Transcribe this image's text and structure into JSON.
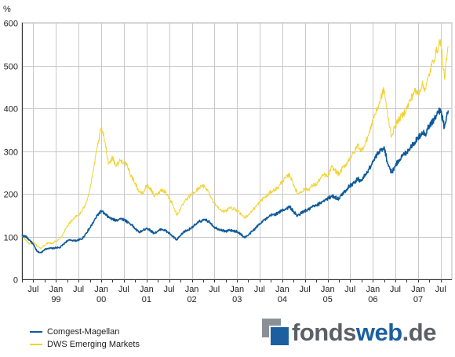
{
  "chart_data": {
    "type": "line",
    "ylabel": "%",
    "ylim": [
      0,
      600
    ],
    "yticks": [
      "0",
      "100",
      "200",
      "300",
      "400",
      "500",
      "600"
    ],
    "xlim": [
      "1998-04-01",
      "2007-09-30"
    ],
    "x_month_ticks": [
      "Jul",
      "Jan",
      "Jul",
      "Jan",
      "Jul",
      "Jan",
      "Jul",
      "Jan",
      "Jul",
      "Jan",
      "Jul",
      "Jan",
      "Jul",
      "Jan",
      "Jul",
      "Jan",
      "Jul",
      "Jan",
      "Jul"
    ],
    "x_year_ticks": [
      "99",
      "00",
      "01",
      "02",
      "03",
      "04",
      "05",
      "06",
      "07"
    ],
    "grid": true,
    "legend_position": "bottom-left",
    "series": [
      {
        "name": "Comgest-Magellan",
        "color": "#0d5a9a",
        "points": [
          [
            "1998-04-01",
            102
          ],
          [
            "1998-05-01",
            100
          ],
          [
            "1998-06-01",
            92
          ],
          [
            "1998-07-01",
            82
          ],
          [
            "1998-08-01",
            65
          ],
          [
            "1998-09-01",
            62
          ],
          [
            "1998-10-01",
            70
          ],
          [
            "1998-11-01",
            73
          ],
          [
            "1998-12-01",
            72
          ],
          [
            "1999-01-01",
            74
          ],
          [
            "1999-02-01",
            74
          ],
          [
            "1999-03-01",
            82
          ],
          [
            "1999-04-01",
            90
          ],
          [
            "1999-05-01",
            92
          ],
          [
            "1999-06-01",
            90
          ],
          [
            "1999-07-01",
            92
          ],
          [
            "1999-08-01",
            95
          ],
          [
            "1999-09-01",
            108
          ],
          [
            "1999-10-01",
            120
          ],
          [
            "1999-11-01",
            135
          ],
          [
            "1999-12-01",
            150
          ],
          [
            "2000-01-01",
            160
          ],
          [
            "2000-02-01",
            152
          ],
          [
            "2000-03-01",
            145
          ],
          [
            "2000-04-01",
            140
          ],
          [
            "2000-05-01",
            138
          ],
          [
            "2000-06-01",
            142
          ],
          [
            "2000-07-01",
            140
          ],
          [
            "2000-08-01",
            134
          ],
          [
            "2000-09-01",
            128
          ],
          [
            "2000-10-01",
            118
          ],
          [
            "2000-11-01",
            110
          ],
          [
            "2000-12-01",
            114
          ],
          [
            "2001-01-01",
            120
          ],
          [
            "2001-02-01",
            114
          ],
          [
            "2001-03-01",
            108
          ],
          [
            "2001-04-01",
            112
          ],
          [
            "2001-05-01",
            118
          ],
          [
            "2001-06-01",
            114
          ],
          [
            "2001-07-01",
            108
          ],
          [
            "2001-08-01",
            100
          ],
          [
            "2001-09-01",
            92
          ],
          [
            "2001-10-01",
            102
          ],
          [
            "2001-11-01",
            112
          ],
          [
            "2001-12-01",
            115
          ],
          [
            "2002-01-01",
            122
          ],
          [
            "2002-02-01",
            128
          ],
          [
            "2002-03-01",
            135
          ],
          [
            "2002-04-01",
            138
          ],
          [
            "2002-05-01",
            138
          ],
          [
            "2002-06-01",
            132
          ],
          [
            "2002-07-01",
            122
          ],
          [
            "2002-08-01",
            118
          ],
          [
            "2002-09-01",
            115
          ],
          [
            "2002-10-01",
            112
          ],
          [
            "2002-11-01",
            115
          ],
          [
            "2002-12-01",
            113
          ],
          [
            "2003-01-01",
            112
          ],
          [
            "2003-02-01",
            105
          ],
          [
            "2003-03-01",
            98
          ],
          [
            "2003-04-01",
            103
          ],
          [
            "2003-05-01",
            112
          ],
          [
            "2003-06-01",
            120
          ],
          [
            "2003-07-01",
            130
          ],
          [
            "2003-08-01",
            138
          ],
          [
            "2003-09-01",
            142
          ],
          [
            "2003-10-01",
            150
          ],
          [
            "2003-11-01",
            152
          ],
          [
            "2003-12-01",
            155
          ],
          [
            "2004-01-01",
            162
          ],
          [
            "2004-02-01",
            165
          ],
          [
            "2004-03-01",
            170
          ],
          [
            "2004-04-01",
            158
          ],
          [
            "2004-05-01",
            148
          ],
          [
            "2004-06-01",
            155
          ],
          [
            "2004-07-01",
            160
          ],
          [
            "2004-08-01",
            163
          ],
          [
            "2004-09-01",
            170
          ],
          [
            "2004-10-01",
            172
          ],
          [
            "2004-11-01",
            178
          ],
          [
            "2004-12-01",
            185
          ],
          [
            "2005-01-01",
            188
          ],
          [
            "2005-02-01",
            195
          ],
          [
            "2005-03-01",
            192
          ],
          [
            "2005-04-01",
            188
          ],
          [
            "2005-05-01",
            200
          ],
          [
            "2005-06-01",
            210
          ],
          [
            "2005-07-01",
            220
          ],
          [
            "2005-08-01",
            225
          ],
          [
            "2005-09-01",
            235
          ],
          [
            "2005-10-01",
            230
          ],
          [
            "2005-11-01",
            245
          ],
          [
            "2005-12-01",
            258
          ],
          [
            "2006-01-01",
            275
          ],
          [
            "2006-02-01",
            290
          ],
          [
            "2006-03-01",
            300
          ],
          [
            "2006-04-01",
            310
          ],
          [
            "2006-05-01",
            270
          ],
          [
            "2006-06-01",
            250
          ],
          [
            "2006-07-01",
            265
          ],
          [
            "2006-08-01",
            280
          ],
          [
            "2006-09-01",
            290
          ],
          [
            "2006-10-01",
            298
          ],
          [
            "2006-11-01",
            310
          ],
          [
            "2006-12-01",
            320
          ],
          [
            "2007-01-01",
            330
          ],
          [
            "2007-02-01",
            345
          ],
          [
            "2007-03-01",
            340
          ],
          [
            "2007-04-01",
            360
          ],
          [
            "2007-05-01",
            370
          ],
          [
            "2007-06-01",
            385
          ],
          [
            "2007-07-01",
            398
          ],
          [
            "2007-08-01",
            355
          ],
          [
            "2007-09-01",
            395
          ]
        ]
      },
      {
        "name": "DWS Emerging Markets",
        "color": "#f2d230",
        "points": [
          [
            "1998-04-01",
            100
          ],
          [
            "1998-05-01",
            92
          ],
          [
            "1998-06-01",
            82
          ],
          [
            "1998-07-01",
            88
          ],
          [
            "1998-08-01",
            78
          ],
          [
            "1998-09-01",
            72
          ],
          [
            "1998-10-01",
            80
          ],
          [
            "1998-11-01",
            86
          ],
          [
            "1998-12-01",
            84
          ],
          [
            "1999-01-01",
            90
          ],
          [
            "1999-02-01",
            94
          ],
          [
            "1999-03-01",
            108
          ],
          [
            "1999-04-01",
            125
          ],
          [
            "1999-05-01",
            135
          ],
          [
            "1999-06-01",
            145
          ],
          [
            "1999-07-01",
            150
          ],
          [
            "1999-08-01",
            160
          ],
          [
            "1999-09-01",
            180
          ],
          [
            "1999-10-01",
            210
          ],
          [
            "1999-11-01",
            260
          ],
          [
            "1999-12-01",
            310
          ],
          [
            "2000-01-01",
            355
          ],
          [
            "2000-02-01",
            320
          ],
          [
            "2000-03-01",
            270
          ],
          [
            "2000-04-01",
            285
          ],
          [
            "2000-05-01",
            265
          ],
          [
            "2000-06-01",
            278
          ],
          [
            "2000-07-01",
            275
          ],
          [
            "2000-08-01",
            262
          ],
          [
            "2000-09-01",
            240
          ],
          [
            "2000-10-01",
            225
          ],
          [
            "2000-11-01",
            205
          ],
          [
            "2000-12-01",
            200
          ],
          [
            "2001-01-01",
            220
          ],
          [
            "2001-02-01",
            212
          ],
          [
            "2001-03-01",
            195
          ],
          [
            "2001-04-01",
            200
          ],
          [
            "2001-05-01",
            210
          ],
          [
            "2001-06-01",
            205
          ],
          [
            "2001-07-01",
            190
          ],
          [
            "2001-08-01",
            175
          ],
          [
            "2001-09-01",
            150
          ],
          [
            "2001-10-01",
            165
          ],
          [
            "2001-11-01",
            180
          ],
          [
            "2001-12-01",
            190
          ],
          [
            "2002-01-01",
            200
          ],
          [
            "2002-02-01",
            205
          ],
          [
            "2002-03-01",
            215
          ],
          [
            "2002-04-01",
            218
          ],
          [
            "2002-05-01",
            212
          ],
          [
            "2002-06-01",
            195
          ],
          [
            "2002-07-01",
            178
          ],
          [
            "2002-08-01",
            170
          ],
          [
            "2002-09-01",
            158
          ],
          [
            "2002-10-01",
            160
          ],
          [
            "2002-11-01",
            168
          ],
          [
            "2002-12-01",
            165
          ],
          [
            "2003-01-01",
            160
          ],
          [
            "2003-02-01",
            152
          ],
          [
            "2003-03-01",
            145
          ],
          [
            "2003-04-01",
            150
          ],
          [
            "2003-05-01",
            160
          ],
          [
            "2003-06-01",
            170
          ],
          [
            "2003-07-01",
            180
          ],
          [
            "2003-08-01",
            190
          ],
          [
            "2003-09-01",
            195
          ],
          [
            "2003-10-01",
            205
          ],
          [
            "2003-11-01",
            210
          ],
          [
            "2003-12-01",
            215
          ],
          [
            "2004-01-01",
            230
          ],
          [
            "2004-02-01",
            238
          ],
          [
            "2004-03-01",
            245
          ],
          [
            "2004-04-01",
            222
          ],
          [
            "2004-05-01",
            200
          ],
          [
            "2004-06-01",
            205
          ],
          [
            "2004-07-01",
            212
          ],
          [
            "2004-08-01",
            210
          ],
          [
            "2004-09-01",
            220
          ],
          [
            "2004-10-01",
            222
          ],
          [
            "2004-11-01",
            235
          ],
          [
            "2004-12-01",
            245
          ],
          [
            "2005-01-01",
            240
          ],
          [
            "2005-02-01",
            262
          ],
          [
            "2005-03-01",
            255
          ],
          [
            "2005-04-01",
            245
          ],
          [
            "2005-05-01",
            260
          ],
          [
            "2005-06-01",
            270
          ],
          [
            "2005-07-01",
            285
          ],
          [
            "2005-08-01",
            295
          ],
          [
            "2005-09-01",
            315
          ],
          [
            "2005-10-01",
            300
          ],
          [
            "2005-11-01",
            320
          ],
          [
            "2005-12-01",
            340
          ],
          [
            "2006-01-01",
            375
          ],
          [
            "2006-02-01",
            395
          ],
          [
            "2006-03-01",
            420
          ],
          [
            "2006-04-01",
            445
          ],
          [
            "2006-05-01",
            380
          ],
          [
            "2006-06-01",
            335
          ],
          [
            "2006-07-01",
            360
          ],
          [
            "2006-08-01",
            375
          ],
          [
            "2006-09-01",
            385
          ],
          [
            "2006-10-01",
            400
          ],
          [
            "2006-11-01",
            420
          ],
          [
            "2006-12-01",
            440
          ],
          [
            "2007-01-01",
            435
          ],
          [
            "2007-02-01",
            455
          ],
          [
            "2007-03-01",
            445
          ],
          [
            "2007-04-01",
            480
          ],
          [
            "2007-05-01",
            510
          ],
          [
            "2007-06-01",
            535
          ],
          [
            "2007-07-01",
            560
          ],
          [
            "2007-08-01",
            470
          ],
          [
            "2007-09-01",
            545
          ]
        ]
      }
    ]
  },
  "legend": {
    "items": [
      {
        "label": "Comgest-Magellan",
        "color": "#0d5a9a"
      },
      {
        "label": "DWS Emerging Markets",
        "color": "#f2d230"
      }
    ]
  },
  "logo": {
    "text_a": "fonds",
    "text_b": "web",
    "text_c": ".de"
  }
}
